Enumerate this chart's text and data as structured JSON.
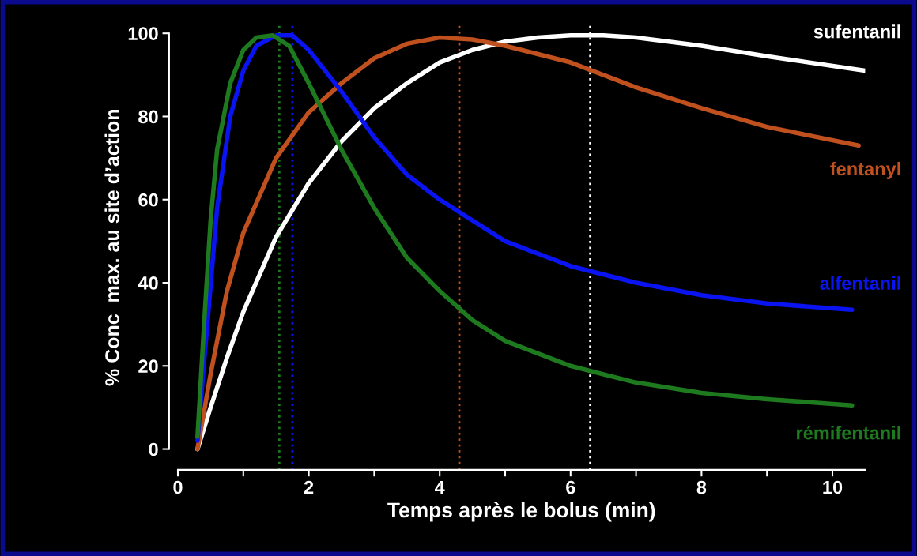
{
  "chart_data": {
    "type": "line",
    "xlabel": "Temps après le bolus (min)",
    "ylabel": "% Conc  max. au site d’action",
    "xlim": [
      0,
      10.5
    ],
    "ylim": [
      -5,
      102
    ],
    "xticks": [
      0,
      {
        "value": 1,
        "label": null
      },
      2,
      {
        "value": 3,
        "label": null
      },
      4,
      {
        "value": 5,
        "label": null
      },
      6,
      {
        "value": 7,
        "label": null
      },
      8,
      {
        "value": 9,
        "label": null
      },
      10
    ],
    "yticks": [
      0,
      20,
      40,
      60,
      80,
      100
    ],
    "grid": false,
    "legend": false,
    "marker": "none",
    "line_style": "solid",
    "series": [
      {
        "name": "sufentanil",
        "color": "#ffffff",
        "x": [
          0.3,
          0.5,
          0.75,
          1,
          1.5,
          2,
          2.5,
          3,
          3.5,
          4,
          4.5,
          5,
          5.5,
          6,
          6.5,
          7,
          7.5,
          8,
          9,
          10.5
        ],
        "values": [
          0,
          10,
          22,
          33,
          51,
          64,
          74,
          82,
          88,
          93,
          96,
          98,
          99,
          99.5,
          99.5,
          99,
          98,
          97,
          94.5,
          91
        ]
      },
      {
        "name": "fentanyl",
        "color": "#c0501e",
        "x": [
          0.3,
          0.5,
          0.75,
          1,
          1.5,
          2,
          2.5,
          3,
          3.5,
          4,
          4.5,
          5,
          5.5,
          6,
          6.5,
          7,
          8,
          9,
          10.4
        ],
        "values": [
          0,
          18,
          38,
          52,
          70,
          81,
          88,
          94,
          97.5,
          99,
          98.5,
          97,
          95,
          93,
          90,
          87,
          82,
          77.5,
          73
        ]
      },
      {
        "name": "alfentanil",
        "color": "#0a14f0",
        "x": [
          0.3,
          0.45,
          0.6,
          0.8,
          1,
          1.2,
          1.5,
          1.75,
          2,
          2.5,
          3,
          3.5,
          4,
          4.5,
          5,
          5.5,
          6,
          6.5,
          7,
          8,
          9,
          10.3
        ],
        "values": [
          2,
          30,
          58,
          80,
          91,
          97,
          99.5,
          99.5,
          96,
          86,
          75,
          66,
          60,
          55,
          50,
          47,
          44,
          42,
          40,
          37,
          35,
          33.5
        ]
      },
      {
        "name": "rémifentanil",
        "color": "#1e7a1e",
        "x": [
          0.3,
          0.4,
          0.5,
          0.6,
          0.8,
          1,
          1.2,
          1.45,
          1.7,
          2,
          2.5,
          3,
          3.5,
          4,
          4.5,
          5,
          6,
          7,
          8,
          9,
          10.3
        ],
        "values": [
          3,
          30,
          55,
          72,
          88,
          96,
          99,
          99.5,
          97,
          88,
          72,
          58,
          46,
          38,
          31,
          26,
          20,
          16,
          13.5,
          12,
          10.5
        ]
      }
    ],
    "ref_lines": [
      {
        "axis": "x",
        "value": 1.55,
        "color": "#1e7a1e",
        "line_style": "dotted"
      },
      {
        "axis": "x",
        "value": 1.75,
        "color": "#0a14f0",
        "line_style": "dotted"
      },
      {
        "axis": "x",
        "value": 4.3,
        "color": "#c0501e",
        "line_style": "dotted"
      },
      {
        "axis": "x",
        "value": 6.3,
        "color": "#ffffff",
        "line_style": "dotted"
      }
    ]
  }
}
